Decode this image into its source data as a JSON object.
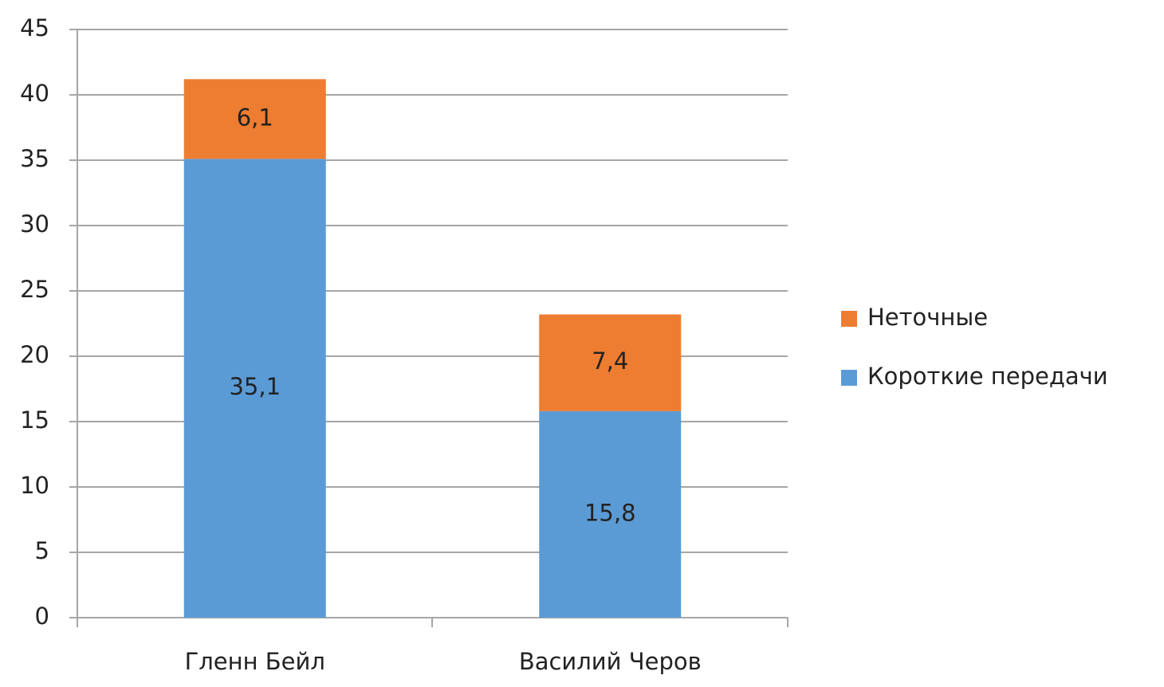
{
  "chart_data": {
    "type": "stacked_bar",
    "categories": [
      "Гленн Бейл",
      "Василий Черов"
    ],
    "series": [
      {
        "name": "Короткие передачи",
        "color": "#5b9bd5",
        "values": [
          35.1,
          15.8
        ],
        "value_labels": [
          "35,1",
          "15,8"
        ]
      },
      {
        "name": "Неточные",
        "color": "#ed7d31",
        "values": [
          6.1,
          7.4
        ],
        "value_labels": [
          "6,1",
          "7,4"
        ]
      }
    ],
    "ylim": [
      0,
      45
    ],
    "yticks": [
      0,
      5,
      10,
      15,
      20,
      25,
      30,
      35,
      40,
      45
    ],
    "grid": true,
    "legend": "right"
  }
}
